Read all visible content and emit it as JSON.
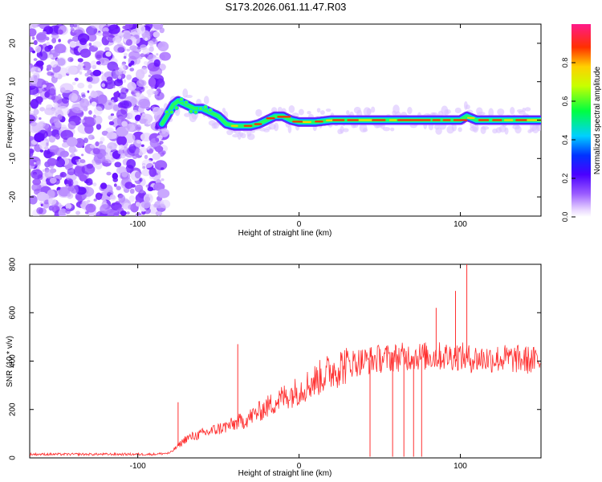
{
  "figure": {
    "title": "S173.2026.061.11.47.R03"
  },
  "chart_data": [
    {
      "type": "heatmap",
      "title": "S173.2026.061.11.47.R03",
      "xlabel": "Height of straight line (km)",
      "ylabel": "Frequency (Hz)",
      "xlim": [
        -167,
        150
      ],
      "ylim": [
        -25,
        25
      ],
      "x_ticks": [
        -100,
        0,
        100
      ],
      "y_ticks": [
        -20,
        -10,
        0,
        10,
        20
      ],
      "colorbar": {
        "label": "Normalized spectral amplitude",
        "range": [
          0,
          1
        ],
        "ticks": [
          0.0,
          0.2,
          0.4,
          0.6,
          0.8
        ]
      },
      "ridge": {
        "x": [
          -85,
          -82,
          -78,
          -75,
          -70,
          -65,
          -60,
          -55,
          -50,
          -45,
          -40,
          -35,
          -30,
          -25,
          -20,
          -15,
          -10,
          -5,
          0,
          10,
          20,
          30,
          40,
          50,
          60,
          70,
          80,
          90,
          100,
          104,
          110,
          120,
          130,
          140,
          150
        ],
        "y": [
          -1,
          1,
          4,
          5,
          4,
          3,
          3,
          2,
          1,
          -1,
          -1.5,
          -1.5,
          -1.5,
          -1,
          0,
          1,
          1,
          0,
          -0.5,
          -0.5,
          0,
          0,
          0,
          0,
          0,
          0,
          0,
          0,
          0,
          1,
          0,
          0,
          0,
          0,
          0
        ]
      },
      "noise_region_x": [
        -167,
        -83
      ]
    },
    {
      "type": "line",
      "xlabel": "Height of straight line (km)",
      "ylabel": "SNR (10 * v/v)",
      "xlim": [
        -167,
        150
      ],
      "ylim": [
        0,
        800
      ],
      "x_ticks": [
        -100,
        0,
        100
      ],
      "y_ticks": [
        0,
        200,
        400,
        600,
        800
      ],
      "series": [
        {
          "name": "SNR",
          "color": "#ff3030",
          "x": [
            -167,
            -150,
            -130,
            -110,
            -90,
            -80,
            -75,
            -70,
            -65,
            -60,
            -55,
            -50,
            -45,
            -40,
            -38,
            -35,
            -30,
            -25,
            -20,
            -15,
            -10,
            -5,
            0,
            5,
            10,
            15,
            20,
            25,
            30,
            40,
            50,
            60,
            70,
            80,
            90,
            100,
            105,
            110,
            120,
            130,
            140,
            150
          ],
          "y": [
            15,
            15,
            15,
            15,
            15,
            20,
            50,
            80,
            90,
            100,
            110,
            120,
            130,
            140,
            150,
            150,
            170,
            190,
            210,
            230,
            250,
            265,
            280,
            300,
            320,
            340,
            360,
            375,
            390,
            400,
            410,
            415,
            420,
            420,
            420,
            420,
            410,
            410,
            410,
            410,
            405,
            400
          ]
        }
      ],
      "annotations": [
        {
          "x": -38,
          "y": 470,
          "label": "spike"
        },
        {
          "x": -75,
          "y": 230,
          "label": "spike"
        },
        {
          "x": 104,
          "y": 800,
          "label": "spike"
        },
        {
          "x": 97,
          "y": 690,
          "label": "spike"
        },
        {
          "x": 85,
          "y": 620,
          "label": "spike"
        },
        {
          "x": 44,
          "y": 5,
          "label": "dropout"
        },
        {
          "x": 58,
          "y": 5,
          "label": "dropout"
        },
        {
          "x": 65,
          "y": 5,
          "label": "dropout"
        },
        {
          "x": 71,
          "y": 5,
          "label": "dropout"
        },
        {
          "x": 76,
          "y": 5,
          "label": "dropout"
        }
      ]
    }
  ]
}
